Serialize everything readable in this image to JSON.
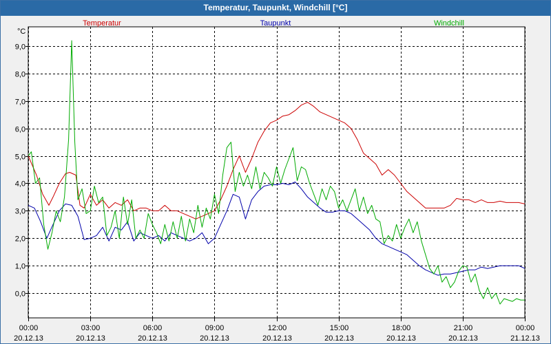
{
  "window": {
    "title": "Temperatur, Taupunkt, Windchill [°C]"
  },
  "chart_data": {
    "type": "line",
    "title": "Temperatur, Taupunkt, Windchill [°C]",
    "unit_label": "°C",
    "ylim": [
      -0.9,
      9.7
    ],
    "xlim_hours": [
      0,
      24
    ],
    "y_ticks": [
      9,
      8,
      7,
      6,
      5,
      4,
      3,
      2,
      1,
      0
    ],
    "y_tick_labels": [
      "9,0",
      "8,0",
      "7,0",
      "6,0",
      "5,0",
      "4,0",
      "3,0",
      "2,0",
      "1,0",
      "0,0"
    ],
    "x_ticks_hours": [
      0,
      3,
      6,
      9,
      12,
      15,
      18,
      21,
      24
    ],
    "x_tick_times": [
      "00:00",
      "03:00",
      "06:00",
      "09:00",
      "12:00",
      "15:00",
      "18:00",
      "21:00",
      "00:00"
    ],
    "x_tick_dates": [
      "20.12.13",
      "20.12.13",
      "20.12.13",
      "20.12.13",
      "20.12.13",
      "20.12.13",
      "20.12.13",
      "20.12.13",
      "21.12.13"
    ],
    "grid": true,
    "series": [
      {
        "name": "Temperatur",
        "color": "#cc0000",
        "x": [
          0,
          0.4,
          0.7,
          1.0,
          1.2,
          1.5,
          1.8,
          2.0,
          2.3,
          2.5,
          2.7,
          3.0,
          3.3,
          3.6,
          3.9,
          4.2,
          4.5,
          4.8,
          5.1,
          5.4,
          5.7,
          6.0,
          6.3,
          6.6,
          6.9,
          7.2,
          7.5,
          7.8,
          8.1,
          8.4,
          8.7,
          9.0,
          9.3,
          9.6,
          9.9,
          10.2,
          10.5,
          10.8,
          11.1,
          11.4,
          11.7,
          12.0,
          12.3,
          12.6,
          12.9,
          13.2,
          13.5,
          13.8,
          14.1,
          14.4,
          14.7,
          15.0,
          15.3,
          15.6,
          15.9,
          16.2,
          16.5,
          16.8,
          17.1,
          17.4,
          17.7,
          18.0,
          18.3,
          18.6,
          18.9,
          19.2,
          19.5,
          19.8,
          20.1,
          20.4,
          20.7,
          21.0,
          21.3,
          21.6,
          21.9,
          22.2,
          22.5,
          22.8,
          23.1,
          23.4,
          23.7,
          24.0
        ],
        "values": [
          5.0,
          4.3,
          3.6,
          3.2,
          3.5,
          4.0,
          4.35,
          4.4,
          4.3,
          3.2,
          3.1,
          3.6,
          3.2,
          3.4,
          3.1,
          3.3,
          3.2,
          3.4,
          3.0,
          3.1,
          3.1,
          3.0,
          3.0,
          3.2,
          3.0,
          3.0,
          2.9,
          2.8,
          2.7,
          2.8,
          2.9,
          3.0,
          3.4,
          3.9,
          4.5,
          5.0,
          4.4,
          4.9,
          5.5,
          5.9,
          6.2,
          6.3,
          6.45,
          6.5,
          6.65,
          6.85,
          6.95,
          6.8,
          6.6,
          6.5,
          6.4,
          6.3,
          6.2,
          6.0,
          5.6,
          5.1,
          4.9,
          4.7,
          4.3,
          4.5,
          4.3,
          4.0,
          3.7,
          3.5,
          3.3,
          3.1,
          3.1,
          3.1,
          3.1,
          3.2,
          3.45,
          3.4,
          3.4,
          3.3,
          3.4,
          3.3,
          3.3,
          3.35,
          3.3,
          3.3,
          3.3,
          3.25
        ]
      },
      {
        "name": "Taupunkt",
        "color": "#0000aa",
        "x": [
          0,
          0.3,
          0.6,
          0.9,
          1.2,
          1.5,
          1.8,
          2.1,
          2.4,
          2.7,
          3.0,
          3.3,
          3.6,
          3.9,
          4.2,
          4.5,
          4.8,
          5.1,
          5.4,
          5.7,
          6.0,
          6.3,
          6.6,
          6.9,
          7.2,
          7.5,
          7.8,
          8.1,
          8.4,
          8.7,
          9.0,
          9.3,
          9.6,
          9.9,
          10.2,
          10.5,
          10.8,
          11.1,
          11.4,
          11.7,
          12.0,
          12.3,
          12.6,
          12.9,
          13.2,
          13.5,
          13.8,
          14.1,
          14.4,
          14.7,
          15.0,
          15.3,
          15.6,
          15.9,
          16.2,
          16.5,
          16.8,
          17.1,
          17.4,
          17.7,
          18.0,
          18.3,
          18.6,
          18.9,
          19.2,
          19.5,
          19.8,
          20.1,
          20.4,
          20.7,
          21.0,
          21.3,
          21.6,
          21.9,
          22.2,
          22.5,
          22.8,
          23.1,
          23.4,
          23.7,
          24.0
        ],
        "values": [
          3.2,
          3.1,
          2.6,
          2.0,
          2.5,
          3.0,
          3.25,
          3.2,
          2.8,
          1.95,
          2.0,
          2.1,
          2.4,
          1.9,
          2.4,
          2.3,
          2.6,
          1.9,
          2.2,
          2.1,
          2.0,
          2.1,
          1.9,
          2.2,
          2.1,
          2.0,
          1.9,
          2.0,
          2.2,
          1.8,
          2.0,
          2.5,
          3.0,
          3.6,
          3.5,
          2.7,
          3.4,
          3.7,
          3.9,
          3.95,
          3.95,
          4.0,
          3.95,
          4.05,
          3.8,
          3.5,
          3.3,
          3.1,
          2.95,
          2.95,
          3.0,
          3.0,
          2.9,
          2.7,
          2.5,
          2.3,
          2.0,
          1.8,
          1.7,
          1.6,
          1.5,
          1.4,
          1.2,
          1.0,
          0.85,
          0.75,
          0.65,
          0.7,
          0.7,
          0.75,
          0.8,
          0.85,
          0.85,
          0.95,
          0.9,
          0.95,
          1.0,
          1.0,
          1.0,
          1.0,
          0.9
        ]
      },
      {
        "name": "Windchill",
        "color": "#00aa00",
        "x": [
          0,
          0.15,
          0.35,
          0.55,
          0.75,
          0.95,
          1.15,
          1.35,
          1.55,
          1.75,
          1.95,
          2.1,
          2.25,
          2.4,
          2.6,
          2.8,
          3.0,
          3.2,
          3.4,
          3.6,
          3.8,
          4.0,
          4.2,
          4.4,
          4.6,
          4.8,
          5.0,
          5.2,
          5.4,
          5.6,
          5.8,
          6.0,
          6.2,
          6.4,
          6.6,
          6.8,
          7.0,
          7.2,
          7.4,
          7.6,
          7.8,
          8.0,
          8.2,
          8.4,
          8.6,
          8.8,
          9.0,
          9.2,
          9.4,
          9.6,
          9.8,
          10.0,
          10.2,
          10.4,
          10.6,
          10.8,
          11.0,
          11.2,
          11.4,
          11.6,
          11.8,
          12.0,
          12.2,
          12.4,
          12.6,
          12.8,
          13.0,
          13.2,
          13.4,
          13.6,
          13.8,
          14.0,
          14.2,
          14.4,
          14.6,
          14.8,
          15.0,
          15.2,
          15.4,
          15.6,
          15.8,
          16.0,
          16.2,
          16.4,
          16.6,
          16.8,
          17.0,
          17.2,
          17.4,
          17.6,
          17.8,
          18.0,
          18.2,
          18.4,
          18.6,
          18.8,
          19.0,
          19.2,
          19.4,
          19.6,
          19.8,
          20.0,
          20.2,
          20.4,
          20.6,
          20.8,
          21.0,
          21.2,
          21.4,
          21.6,
          21.8,
          22.0,
          22.2,
          22.4,
          22.6,
          22.8,
          23.0,
          23.2,
          23.4,
          23.6,
          23.8,
          24.0
        ],
        "values": [
          5.0,
          5.15,
          4.0,
          4.2,
          2.5,
          1.6,
          2.2,
          3.0,
          2.6,
          3.5,
          5.6,
          9.2,
          5.5,
          3.4,
          3.8,
          2.9,
          3.0,
          3.9,
          3.3,
          3.5,
          2.1,
          2.4,
          3.0,
          2.0,
          3.5,
          2.5,
          3.4,
          2.0,
          2.3,
          2.0,
          2.9,
          2.5,
          2.2,
          1.8,
          2.5,
          1.9,
          2.6,
          2.0,
          2.8,
          1.9,
          2.7,
          2.2,
          3.2,
          2.4,
          3.1,
          2.7,
          3.6,
          2.9,
          4.3,
          5.3,
          5.5,
          3.7,
          4.4,
          3.9,
          4.3,
          3.8,
          4.6,
          3.8,
          4.4,
          4.2,
          3.9,
          4.6,
          4.0,
          4.5,
          4.9,
          5.3,
          4.1,
          4.6,
          4.5,
          4.0,
          3.6,
          3.2,
          3.8,
          3.4,
          3.9,
          3.7,
          3.1,
          3.4,
          3.0,
          3.4,
          3.8,
          3.0,
          3.5,
          2.9,
          3.2,
          2.7,
          2.6,
          1.8,
          2.1,
          1.9,
          2.5,
          2.0,
          2.4,
          2.7,
          2.2,
          2.6,
          1.9,
          1.4,
          0.9,
          0.7,
          1.0,
          0.4,
          0.6,
          0.2,
          0.4,
          0.8,
          1.0,
          0.95,
          0.4,
          0.7,
          0.1,
          -0.2,
          0.2,
          -0.2,
          0.0,
          -0.4,
          -0.2,
          -0.25,
          -0.3,
          -0.2,
          -0.25,
          -0.25
        ]
      }
    ]
  }
}
